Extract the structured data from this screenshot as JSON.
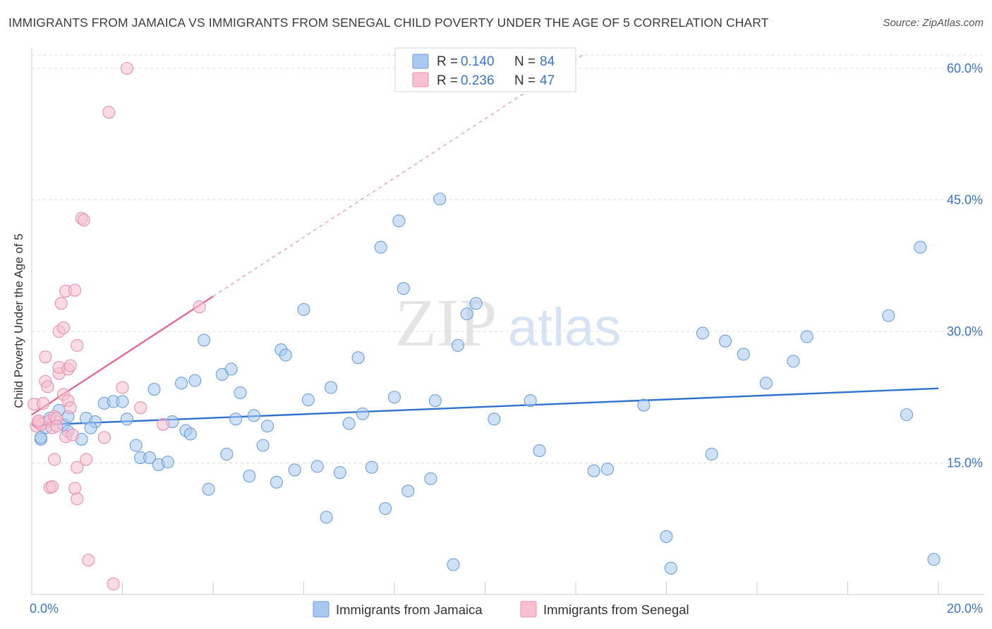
{
  "title": "IMMIGRANTS FROM JAMAICA VS IMMIGRANTS FROM SENEGAL CHILD POVERTY UNDER THE AGE OF 5 CORRELATION CHART",
  "source": "Source: ZipAtlas.com",
  "watermark": {
    "zip": "ZIP",
    "atlas": "atlas"
  },
  "legend": {
    "r_label": "R =",
    "n_label": "N =",
    "entries": [
      {
        "r": "0.140",
        "n": "84"
      },
      {
        "r": "0.236",
        "n": "47"
      }
    ]
  },
  "colors": {
    "jamaica_fill": "#a8c8f0",
    "jamaica_stroke": "#6d9fdc",
    "jamaica_line": "#2f72cc",
    "senegal_fill": "#f7bfd0",
    "senegal_stroke": "#e98fae",
    "senegal_line": "#e46a93",
    "axis_label": "#3b73c8",
    "grid": "#dddddd"
  },
  "chart_data": {
    "type": "scatter",
    "title": "IMMIGRANTS FROM JAMAICA VS IMMIGRANTS FROM SENEGAL CHILD POVERTY UNDER THE AGE OF 5 CORRELATION CHART",
    "xlabel": "",
    "ylabel": "Child Poverty Under the Age of 5",
    "xlim": [
      0,
      20
    ],
    "ylim": [
      0,
      60
    ],
    "x_tick_labels": [
      {
        "value": 0,
        "label": "0.0%"
      },
      {
        "value": 20,
        "label": "20.0%"
      }
    ],
    "y_ticks": [
      {
        "value": 15,
        "label": "15.0%"
      },
      {
        "value": 30,
        "label": "30.0%"
      },
      {
        "value": 45,
        "label": "45.0%"
      },
      {
        "value": 60,
        "label": "60.0%"
      }
    ],
    "series": [
      {
        "name": "Immigrants from Jamaica",
        "R": 0.14,
        "N": 84,
        "trend": {
          "x": [
            0,
            20
          ],
          "y": [
            19.3,
            23.5
          ],
          "dashed_to": null
        },
        "points": [
          [
            0.2,
            17.7
          ],
          [
            0.3,
            19.0
          ],
          [
            0.4,
            20.1
          ],
          [
            0.6,
            21.0
          ],
          [
            0.7,
            19.4
          ],
          [
            0.8,
            20.3
          ],
          [
            0.8,
            18.6
          ],
          [
            1.1,
            17.7
          ],
          [
            1.2,
            20.1
          ],
          [
            1.4,
            19.7
          ],
          [
            1.6,
            21.8
          ],
          [
            1.8,
            22.0
          ],
          [
            2.0,
            22.0
          ],
          [
            2.1,
            20.0
          ],
          [
            2.3,
            17.0
          ],
          [
            2.4,
            15.6
          ],
          [
            2.6,
            15.6
          ],
          [
            2.7,
            23.4
          ],
          [
            2.8,
            14.8
          ],
          [
            3.0,
            15.1
          ],
          [
            3.1,
            19.7
          ],
          [
            3.3,
            24.1
          ],
          [
            3.4,
            18.7
          ],
          [
            3.5,
            18.3
          ],
          [
            3.6,
            24.4
          ],
          [
            3.8,
            29.0
          ],
          [
            3.9,
            12.0
          ],
          [
            4.2,
            25.1
          ],
          [
            4.3,
            16.0
          ],
          [
            4.4,
            25.7
          ],
          [
            4.5,
            20.0
          ],
          [
            4.6,
            23.0
          ],
          [
            4.8,
            13.5
          ],
          [
            4.9,
            20.4
          ],
          [
            5.1,
            17.0
          ],
          [
            5.2,
            19.2
          ],
          [
            5.4,
            12.8
          ],
          [
            5.5,
            27.9
          ],
          [
            5.6,
            27.3
          ],
          [
            5.8,
            14.2
          ],
          [
            6.0,
            32.5
          ],
          [
            6.1,
            22.2
          ],
          [
            6.3,
            14.6
          ],
          [
            6.5,
            8.8
          ],
          [
            6.6,
            23.6
          ],
          [
            6.8,
            13.9
          ],
          [
            7.0,
            19.5
          ],
          [
            7.2,
            27.0
          ],
          [
            7.3,
            20.6
          ],
          [
            7.5,
            14.5
          ],
          [
            7.7,
            39.6
          ],
          [
            7.8,
            9.8
          ],
          [
            8.0,
            22.5
          ],
          [
            8.1,
            42.6
          ],
          [
            8.2,
            34.9
          ],
          [
            8.3,
            11.8
          ],
          [
            8.8,
            13.2
          ],
          [
            8.9,
            22.1
          ],
          [
            9.0,
            45.1
          ],
          [
            9.3,
            3.4
          ],
          [
            9.4,
            28.4
          ],
          [
            9.6,
            32.0
          ],
          [
            9.8,
            33.2
          ],
          [
            10.2,
            20.0
          ],
          [
            11.0,
            22.1
          ],
          [
            11.2,
            16.4
          ],
          [
            12.4,
            14.1
          ],
          [
            12.7,
            14.3
          ],
          [
            13.5,
            21.6
          ],
          [
            14.0,
            6.6
          ],
          [
            14.1,
            3.0
          ],
          [
            14.8,
            29.8
          ],
          [
            15.0,
            16.0
          ],
          [
            15.3,
            28.9
          ],
          [
            15.7,
            27.4
          ],
          [
            16.2,
            24.1
          ],
          [
            16.8,
            26.6
          ],
          [
            17.1,
            29.4
          ],
          [
            18.9,
            31.8
          ],
          [
            19.3,
            20.5
          ],
          [
            19.6,
            39.6
          ],
          [
            19.9,
            4.0
          ],
          [
            0.2,
            17.9
          ],
          [
            1.3,
            19.0
          ]
        ]
      },
      {
        "name": "Immigrants from Senegal",
        "R": 0.236,
        "N": 47,
        "trend": {
          "x": [
            0,
            4.0
          ],
          "y": [
            20.5,
            34.0
          ],
          "dashed_to": [
            20,
            88.0
          ]
        },
        "points": [
          [
            0.05,
            21.7
          ],
          [
            0.1,
            19.2
          ],
          [
            0.15,
            19.6
          ],
          [
            0.2,
            19.4
          ],
          [
            0.25,
            21.8
          ],
          [
            0.3,
            24.3
          ],
          [
            0.3,
            27.1
          ],
          [
            0.35,
            23.7
          ],
          [
            0.4,
            12.2
          ],
          [
            0.4,
            19.8
          ],
          [
            0.45,
            12.3
          ],
          [
            0.45,
            19.0
          ],
          [
            0.5,
            15.4
          ],
          [
            0.5,
            20.3
          ],
          [
            0.55,
            20.1
          ],
          [
            0.6,
            25.2
          ],
          [
            0.6,
            25.9
          ],
          [
            0.6,
            30.0
          ],
          [
            0.65,
            33.2
          ],
          [
            0.7,
            30.4
          ],
          [
            0.7,
            22.8
          ],
          [
            0.75,
            34.6
          ],
          [
            0.75,
            18.0
          ],
          [
            0.8,
            25.7
          ],
          [
            0.8,
            22.1
          ],
          [
            0.85,
            26.1
          ],
          [
            0.85,
            21.3
          ],
          [
            0.9,
            18.2
          ],
          [
            0.95,
            34.7
          ],
          [
            0.95,
            12.1
          ],
          [
            1.0,
            10.9
          ],
          [
            1.0,
            28.4
          ],
          [
            1.0,
            14.5
          ],
          [
            1.1,
            42.9
          ],
          [
            1.15,
            42.7
          ],
          [
            1.2,
            15.4
          ],
          [
            1.25,
            3.9
          ],
          [
            1.6,
            17.9
          ],
          [
            1.7,
            55.0
          ],
          [
            1.8,
            1.2
          ],
          [
            2.0,
            23.6
          ],
          [
            2.1,
            60.0
          ],
          [
            2.4,
            21.3
          ],
          [
            2.9,
            19.4
          ],
          [
            3.7,
            32.8
          ],
          [
            0.15,
            19.8
          ],
          [
            0.55,
            19.2
          ]
        ]
      }
    ]
  }
}
